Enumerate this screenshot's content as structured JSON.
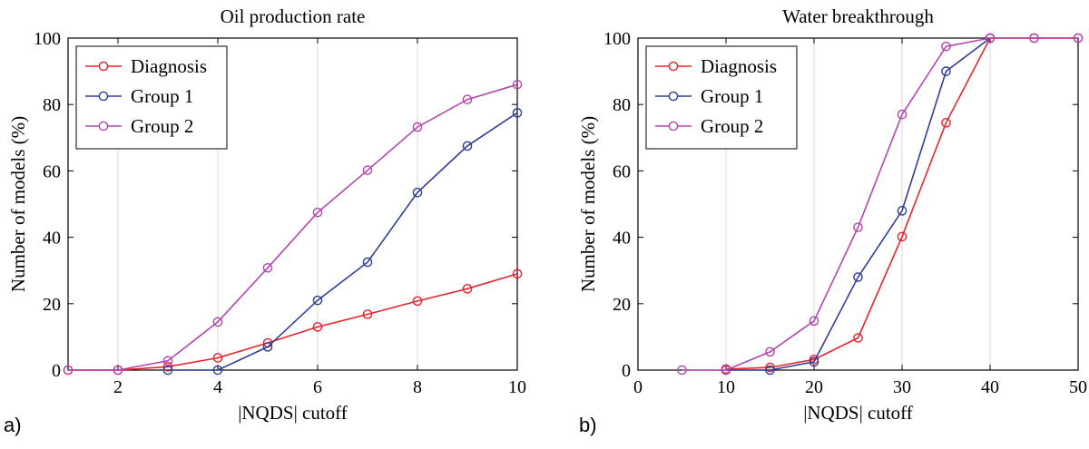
{
  "chart_data": [
    {
      "type": "line",
      "panel_label": "a)",
      "title": "Oil production rate",
      "xlabel": "|NQDS| cutoff",
      "ylabel": "Number of models (%)",
      "xlim": [
        1,
        10
      ],
      "ylim": [
        0,
        100
      ],
      "xticks": [
        2,
        4,
        6,
        8,
        10
      ],
      "yticks": [
        0,
        20,
        40,
        60,
        80,
        100
      ],
      "grid": "vertical",
      "legend_position": "top-left",
      "series": [
        {
          "name": "Diagnosis",
          "color": "#e8232a",
          "x": [
            1,
            2,
            3,
            4,
            5,
            6,
            7,
            8,
            9,
            10
          ],
          "values": [
            0,
            0,
            1,
            3.7,
            8.2,
            13,
            16.8,
            20.8,
            24.5,
            29
          ]
        },
        {
          "name": "Group 1",
          "color": "#2e3f95",
          "x": [
            3,
            4,
            5,
            6,
            7,
            8,
            9,
            10
          ],
          "values": [
            0,
            0,
            7,
            21,
            32.5,
            53.5,
            67.5,
            77.5
          ]
        },
        {
          "name": "Group 2",
          "color": "#b445b0",
          "x": [
            1,
            2,
            3,
            4,
            5,
            6,
            7,
            8,
            9,
            10
          ],
          "values": [
            0,
            0,
            2.8,
            14.5,
            30.8,
            47.5,
            60.2,
            73.2,
            81.5,
            86
          ]
        }
      ]
    },
    {
      "type": "line",
      "panel_label": "b)",
      "title": "Water breakthrough",
      "xlabel": "|NQDS| cutoff",
      "ylabel": "Number of models (%)",
      "xlim": [
        0,
        50
      ],
      "ylim": [
        0,
        100
      ],
      "xticks": [
        0,
        10,
        20,
        30,
        40,
        50
      ],
      "yticks": [
        0,
        20,
        40,
        60,
        80,
        100
      ],
      "grid": "vertical",
      "legend_position": "top-left",
      "series": [
        {
          "name": "Diagnosis",
          "color": "#e8232a",
          "x": [
            10,
            15,
            20,
            25,
            30,
            35,
            40,
            45,
            50
          ],
          "values": [
            0.3,
            0.8,
            3.2,
            9.7,
            40.2,
            74.5,
            100,
            100,
            100
          ]
        },
        {
          "name": "Group 1",
          "color": "#2e3f95",
          "x": [
            10,
            15,
            20,
            25,
            30,
            35,
            40
          ],
          "values": [
            0,
            0,
            2.5,
            28,
            48,
            90,
            100
          ]
        },
        {
          "name": "Group 2",
          "color": "#b445b0",
          "x": [
            5,
            10,
            15,
            20,
            25,
            30,
            35,
            40,
            45,
            50
          ],
          "values": [
            0,
            0,
            5.5,
            14.8,
            43,
            77,
            97.5,
            100,
            100,
            100
          ]
        }
      ]
    }
  ]
}
